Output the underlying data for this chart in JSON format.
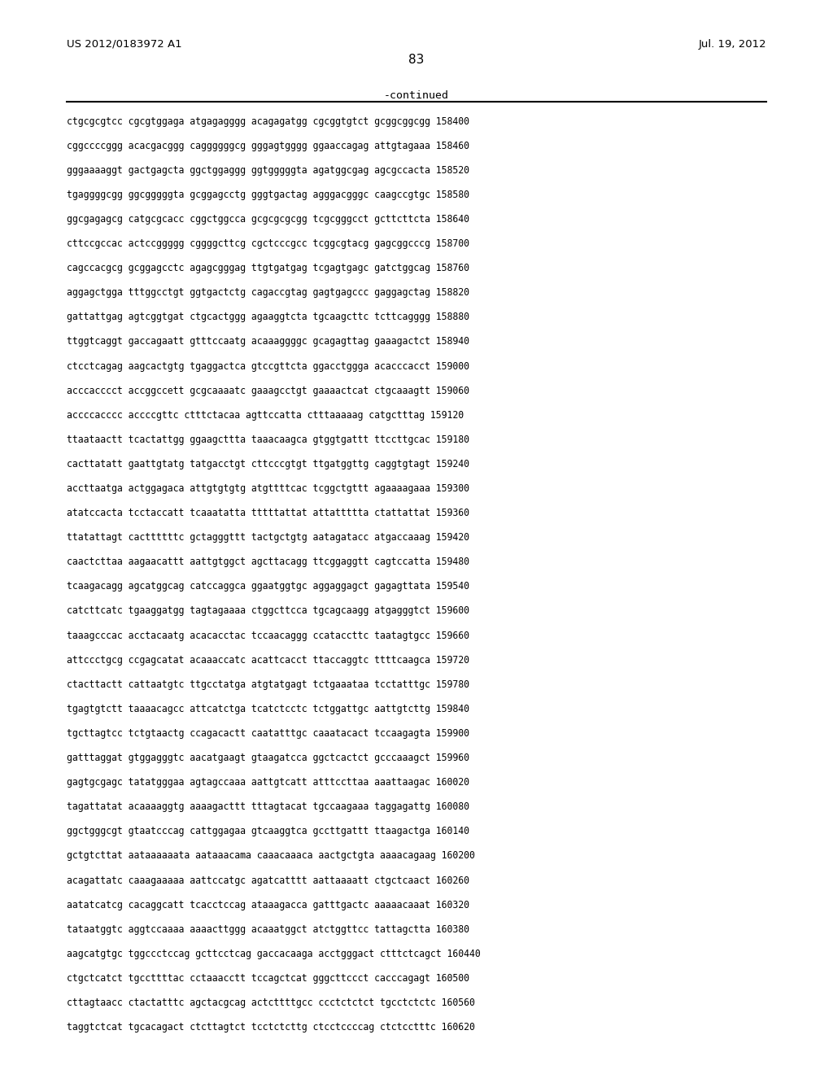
{
  "header_left": "US 2012/0183972 A1",
  "header_right": "Jul. 19, 2012",
  "page_number": "83",
  "continued_label": "-continued",
  "background_color": "#ffffff",
  "text_color": "#000000",
  "sequence_lines": [
    "ctgcgcgtcc cgcgtggaga atgagagggg acagagatgg cgcggtgtct gcggcggcgg 158400",
    "cggccccggg acacgacggg caggggggcg gggagtgggg ggaaccagag attgtagaaa 158460",
    "gggaaaaggt gactgagcta ggctggaggg ggtgggggta agatggcgag agcgccacta 158520",
    "tgaggggcgg ggcgggggta gcggagcctg gggtgactag agggacgggc caagccgtgc 158580",
    "ggcgagagcg catgcgcacc cggctggcca gcgcgcgcgg tcgcgggcct gcttcttcta 158640",
    "cttccgccac actccggggg cggggcttcg cgctcccgcc tcggcgtacg gagcggcccg 158700",
    "cagccacgcg gcggagcctc agagcgggag ttgtgatgag tcgagtgagc gatctggcag 158760",
    "aggagctgga tttggcctgt ggtgactctg cagaccgtag gagtgagccc gaggagctag 158820",
    "gattattgag agtcggtgat ctgcactggg agaaggtcta tgcaagcttc tcttcagggg 158880",
    "ttggtcaggt gaccagaatt gtttccaatg acaaaggggc gcagagttag gaaagactct 158940",
    "ctcctcagag aagcactgtg tgaggactca gtccgttcta ggacctggga acacccacct 159000",
    "acccacccct accggccett gcgcaaaatc gaaagcctgt gaaaactcat ctgcaaagtt 159060",
    "accccacccc accccgttc ctttctacaa agttccatta ctttaaaaag catgctttag 159120",
    "ttaataactt tcactattgg ggaagcttta taaacaagca gtggtgattt ttccttgcac 159180",
    "cacttatatt gaattgtatg tatgacctgt cttcccgtgt ttgatggttg caggtgtagt 159240",
    "accttaatga actggagaca attgtgtgtg atgttttcac tcggctgttt agaaaagaaa 159300",
    "atatccacta tcctaccatt tcaaatatta tttttattat attattttta ctattattat 159360",
    "ttatattagt cacttttttc gctagggttt tactgctgtg aatagatacc atgaccaaag 159420",
    "caactcttaa aagaacattt aattgtggct agcttacagg ttcggaggtt cagtccatta 159480",
    "tcaagacagg agcatggcag catccaggca ggaatggtgc aggaggagct gagagttata 159540",
    "catcttcatc tgaaggatgg tagtagaaaa ctggcttcca tgcagcaagg atgagggtct 159600",
    "taaagcccac acctacaatg acacacctac tccaacaggg ccataccttc taatagtgcc 159660",
    "attccctgcg ccgagcatat acaaaccatc acattcacct ttaccaggtc ttttcaagca 159720",
    "ctacttactt cattaatgtc ttgcctatga atgtatgagt tctgaaataa tcctatttgc 159780",
    "tgagtgtctt taaaacagcc attcatctga tcatctcctc tctggattgc aattgtcttg 159840",
    "tgcttagtcc tctgtaactg ccagacactt caatatttgc caaatacact tccaagagta 159900",
    "gatttaggat gtggagggtc aacatgaagt gtaagatcca ggctcactct gcccaaagct 159960",
    "gagtgcgagc tatatgggaa agtagccaaa aattgtcatt atttccttaa aaattaagac 160020",
    "tagattatat acaaaaggtg aaaagacttt tttagtacat tgccaagaaa taggagattg 160080",
    "ggctgggcgt gtaatcccag cattggagaa gtcaaggtca gccttgattt ttaagactga 160140",
    "gctgtcttat aataaaaaata aataaacama caaacaaaca aactgctgta aaaacagaag 160200",
    "acagattatc caaagaaaaa aattccatgc agatcatttt aattaaaatt ctgctcaact 160260",
    "aatatcatcg cacaggcatt tcacctccag ataaagacca gatttgactc aaaaacaaat 160320",
    "tataatggtc aggtccaaaa aaaacttggg acaaatggct atctggttcc tattagctta 160380",
    "aagcatgtgc tggccctccag gcttcctcag gaccacaaga acctgggact ctttctcagct 160440",
    "ctgctcatct tgccttttac cctaaacctt tccagctcat gggcttccct cacccagagt 160500",
    "cttagtaacc ctactatttc agctacgcag actcttttgcc ccctctctct tgcctctctc 160560",
    "taggtctcat tgcacagact ctcttagtct tcctctcttg ctcctccccag ctctcctttc 160620"
  ]
}
